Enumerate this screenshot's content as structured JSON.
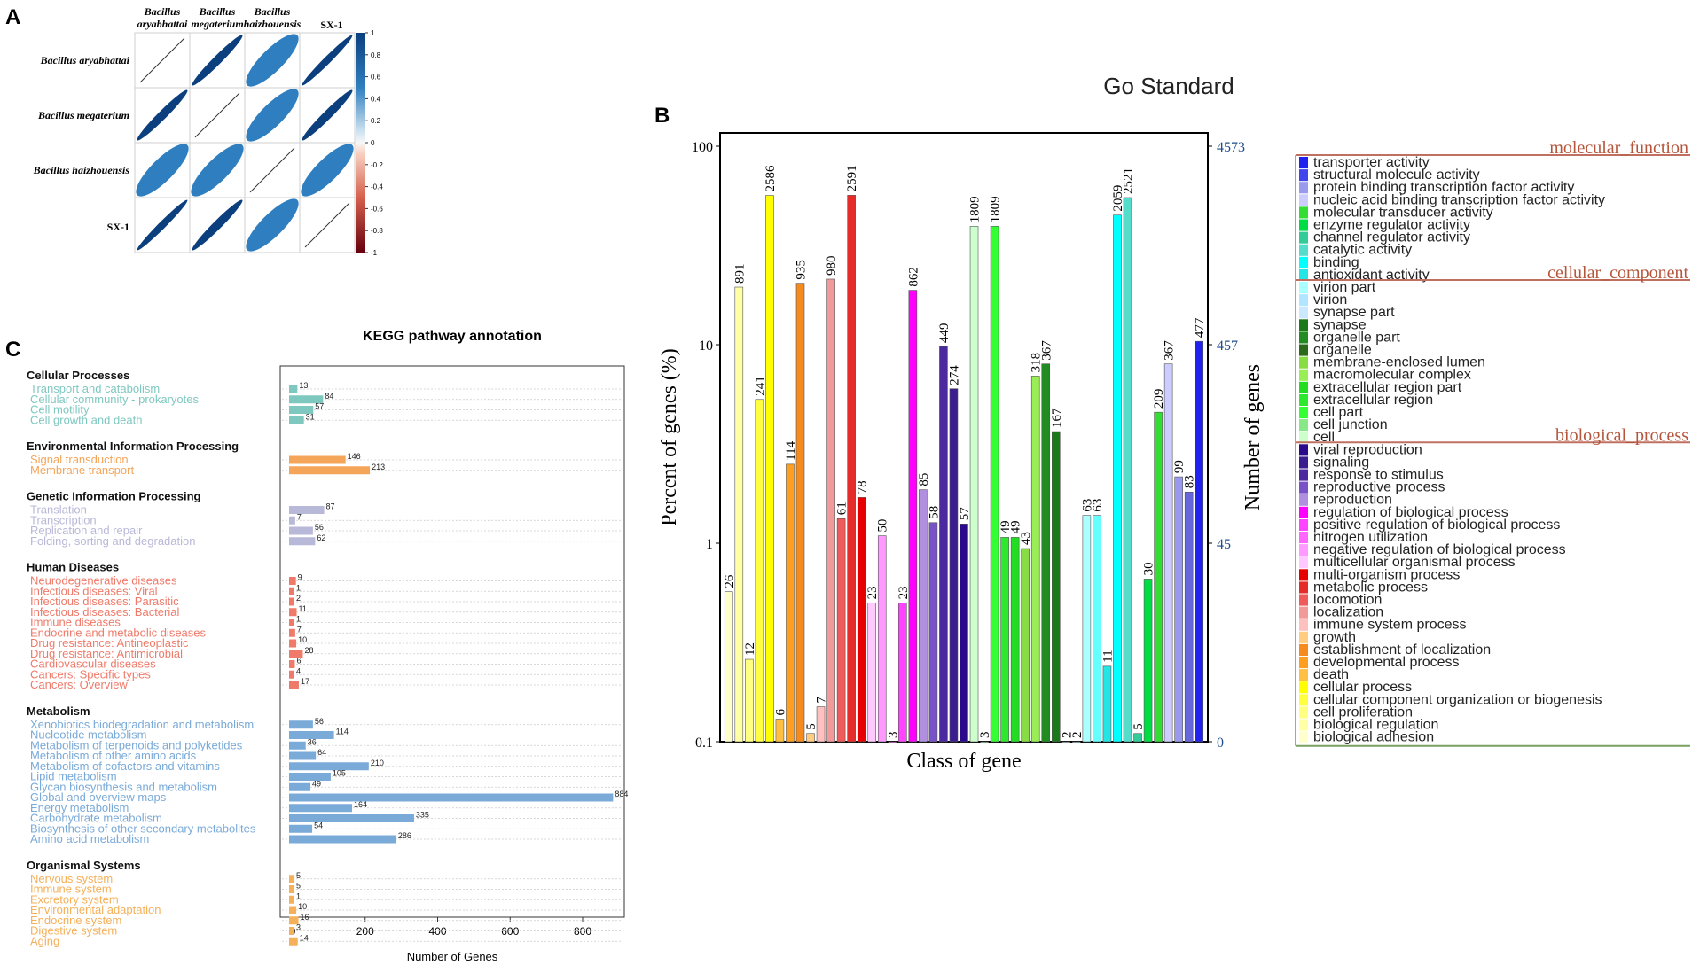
{
  "panels": {
    "a": {
      "letter": "A"
    },
    "b": {
      "letter": "B"
    },
    "c": {
      "letter": "C"
    }
  },
  "chart_data": [
    {
      "type": "heatmap",
      "id": "A",
      "title": "",
      "rows": [
        "Bacillus aryabhattai",
        "Bacillus megaterium",
        "Bacillus haizhouensis",
        "SX-1"
      ],
      "columns": [
        [
          "Bacillus",
          "aryabhattai"
        ],
        [
          "Bacillus",
          "megaterium"
        ],
        [
          "Bacillus",
          "haizhouensis"
        ],
        [
          "SX-1"
        ]
      ],
      "values": [
        [
          1,
          0.97,
          0.8,
          0.98
        ],
        [
          0.97,
          1,
          0.8,
          0.97
        ],
        [
          0.8,
          0.8,
          1,
          0.8
        ],
        [
          0.98,
          0.97,
          0.8,
          1
        ]
      ],
      "colorbar_ticks": [
        "1",
        "0.8",
        "0.6",
        "0.4",
        "0.2",
        "0",
        "-0.2",
        "-0.4",
        "-0.6",
        "-0.8",
        "-1"
      ],
      "colors": {
        "high": "#0b3f7e",
        "mid": "#2f7fc0",
        "zero": "#f7f7f7",
        "low": "#7f0010"
      }
    },
    {
      "type": "bar",
      "id": "B",
      "title": "Go Standard",
      "xlabel": "Class of gene",
      "ylabel": "Percent of genes (%)",
      "ylabel_right": "Number of genes",
      "yscale": "log",
      "ylim": [
        0.1,
        100
      ],
      "yticks": [
        "100",
        "10",
        "1",
        "0.1"
      ],
      "yticks_right": [
        "4573",
        "457",
        "45",
        "0"
      ],
      "categories": [
        "transporter activity",
        "structural molecule activity",
        "protein binding transcription factor activity",
        "nucleic acid binding transcription factor activity",
        "molecular transducer activity",
        "enzyme regulator activity",
        "channel regulator activity",
        "catalytic activity",
        "binding",
        "antioxidant activity",
        "virion part",
        "virion",
        "synapse part",
        "synapse",
        "organelle part",
        "organelle",
        "membrane-enclosed lumen",
        "macromolecular complex",
        "extracellular region part",
        "extracellular region",
        "cell part",
        "cell junction",
        "cell",
        "viral reproduction",
        "signaling",
        "response to stimulus",
        "reproductive process",
        "reproduction",
        "regulation of biological process",
        "positive regulation of biological process",
        "nitrogen utilization",
        "negative regulation of biological process",
        "multicellular organismal process",
        "multi-organism process",
        "metabolic process",
        "locomotion",
        "localization",
        "immune system process",
        "growth",
        "establishment of localization",
        "developmental process",
        "death",
        "cellular process",
        "cellular component organization or biogenesis",
        "cell proliferation",
        "biological regulation",
        "biological adhesion"
      ],
      "bars": [
        {
          "label": "26",
          "value": 0.57,
          "color": "#ffffcc"
        },
        {
          "label": "891",
          "value": 19.5,
          "color": "#ffffa6"
        },
        {
          "label": "12",
          "value": 0.26,
          "color": "#ffff80"
        },
        {
          "label": "241",
          "value": 5.3,
          "color": "#ffff40"
        },
        {
          "label": "2586",
          "value": 56.5,
          "color": "#ffff00"
        },
        {
          "label": "6",
          "value": 0.13,
          "color": "#ffbf40"
        },
        {
          "label": "114",
          "value": 2.5,
          "color": "#ff9f20"
        },
        {
          "label": "935",
          "value": 20.4,
          "color": "#f58a1f"
        },
        {
          "label": "5",
          "value": 0.11,
          "color": "#ffcc80"
        },
        {
          "label": "7",
          "value": 0.15,
          "color": "#ffc0c0"
        },
        {
          "label": "980",
          "value": 21.4,
          "color": "#f29a9a"
        },
        {
          "label": "61",
          "value": 1.33,
          "color": "#ef5a5a"
        },
        {
          "label": "2591",
          "value": 56.6,
          "color": "#e62b2b"
        },
        {
          "label": "78",
          "value": 1.7,
          "color": "#e60000"
        },
        {
          "label": "23",
          "value": 0.5,
          "color": "#ffc8ff"
        },
        {
          "label": "50",
          "value": 1.09,
          "color": "#ff99ff"
        },
        {
          "label": "3",
          "value": 0.1,
          "color": "#ff66ff"
        },
        {
          "label": "23",
          "value": 0.5,
          "color": "#ff44ff"
        },
        {
          "label": "862",
          "value": 18.8,
          "color": "#ff00ff"
        },
        {
          "label": "85",
          "value": 1.86,
          "color": "#b08ee0"
        },
        {
          "label": "58",
          "value": 1.27,
          "color": "#7a52c7"
        },
        {
          "label": "449",
          "value": 9.8,
          "color": "#4b2a9f"
        },
        {
          "label": "274",
          "value": 6.0,
          "color": "#3a1e8f"
        },
        {
          "label": "57",
          "value": 1.25,
          "color": "#2a0a8a"
        },
        {
          "label": "1809",
          "value": 39.5,
          "color": "#ccffcc"
        },
        {
          "label": "3",
          "value": 0.1,
          "color": "#b3ffb3"
        },
        {
          "label": "1809",
          "value": 39.5,
          "color": "#33ff33"
        },
        {
          "label": "49",
          "value": 1.07,
          "color": "#2ee82e"
        },
        {
          "label": "49",
          "value": 1.07,
          "color": "#22dd22"
        },
        {
          "label": "43",
          "value": 0.94,
          "color": "#88dd44"
        },
        {
          "label": "318",
          "value": 6.95,
          "color": "#99ee55"
        },
        {
          "label": "367",
          "value": 8.0,
          "color": "#228b22"
        },
        {
          "label": "167",
          "value": 3.65,
          "color": "#1a7a1a"
        },
        {
          "label": "2",
          "value": 0.1,
          "color": "#cce8ff"
        },
        {
          "label": "2",
          "value": 0.1,
          "color": "#b0e6ff"
        },
        {
          "label": "63",
          "value": 1.38,
          "color": "#aaffff"
        },
        {
          "label": "63",
          "value": 1.38,
          "color": "#66ffff"
        },
        {
          "label": "11",
          "value": 0.24,
          "color": "#22e5e5"
        },
        {
          "label": "2059",
          "value": 45.0,
          "color": "#00ffff"
        },
        {
          "label": "2521",
          "value": 55.1,
          "color": "#55ddcc"
        },
        {
          "label": "5",
          "value": 0.11,
          "color": "#33cc99"
        },
        {
          "label": "30",
          "value": 0.66,
          "color": "#00dd44"
        },
        {
          "label": "209",
          "value": 4.57,
          "color": "#33dd33"
        },
        {
          "label": "367",
          "value": 8.0,
          "color": "#ccccff"
        },
        {
          "label": "99",
          "value": 2.16,
          "color": "#9999ee"
        },
        {
          "label": "83",
          "value": 1.81,
          "color": "#6666dd"
        },
        {
          "label": "477",
          "value": 10.4,
          "color": "#2222ee"
        }
      ],
      "legend_groups": [
        {
          "name": "molecular_function",
          "items": [
            "transporter activity",
            "structural molecule activity",
            "protein binding transcription factor activity",
            "nucleic acid binding transcription factor activity",
            "molecular transducer activity",
            "enzyme regulator activity",
            "channel regulator activity",
            "catalytic activity",
            "binding",
            "antioxidant activity"
          ]
        },
        {
          "name": "cellular_component",
          "items": [
            "virion part",
            "virion",
            "synapse part",
            "synapse",
            "organelle part",
            "organelle",
            "membrane-enclosed lumen",
            "macromolecular complex",
            "extracellular region part",
            "extracellular region",
            "cell part",
            "cell junction",
            "cell"
          ]
        },
        {
          "name": "biological_process",
          "items": [
            "viral reproduction",
            "signaling",
            "response to stimulus",
            "reproductive process",
            "reproduction",
            "regulation of biological process",
            "positive regulation of biological process",
            "nitrogen utilization",
            "negative regulation of biological process",
            "multicellular organismal process",
            "multi-organism process",
            "metabolic process",
            "locomotion",
            "localization",
            "immune system process",
            "growth",
            "establishment of localization",
            "developmental process",
            "death",
            "cellular process",
            "cellular component organization or biogenesis",
            "cell proliferation",
            "biological regulation",
            "biological adhesion"
          ]
        }
      ],
      "legend_colors": [
        "#2222ee",
        "#4444ee",
        "#9999ee",
        "#ccccff",
        "#33dd33",
        "#00dd44",
        "#33cc99",
        "#55ddcc",
        "#00ffff",
        "#22e5e5",
        "#aaffff",
        "#b0e6ff",
        "#cce8ff",
        "#1a7a1a",
        "#228b22",
        "#2a6a1a",
        "#88dd44",
        "#99ee55",
        "#22dd22",
        "#2ee82e",
        "#33ff33",
        "#88e888",
        "#ccffcc",
        "#2a0a8a",
        "#3a1e8f",
        "#4b2a9f",
        "#7a52c7",
        "#b08ee0",
        "#ff00ff",
        "#ff44ff",
        "#ff66ff",
        "#ff99ff",
        "#ffc8ff",
        "#e60000",
        "#e62b2b",
        "#ef5a5a",
        "#f29a9a",
        "#ffc0c0",
        "#ffcc80",
        "#f58a1f",
        "#ff9f20",
        "#ffbf40",
        "#ffff00",
        "#ffff40",
        "#ffff80",
        "#ffffa6",
        "#ffffcc"
      ]
    },
    {
      "type": "bar",
      "id": "C",
      "orientation": "horizontal",
      "title": "KEGG pathway annotation",
      "xlabel": "Number of Genes",
      "xlim": [
        0,
        900
      ],
      "xticks": [
        0,
        200,
        400,
        600,
        800
      ],
      "groups": [
        {
          "name": "Cellular Processes",
          "color": "#7ec8c0",
          "items": [
            {
              "label": "Transport and catabolism",
              "value": 13
            },
            {
              "label": "Cellular community - prokaryotes",
              "value": 84
            },
            {
              "label": "Cell motility",
              "value": 57
            },
            {
              "label": "Cell growth and death",
              "value": 31
            }
          ]
        },
        {
          "name": "Environmental Information Processing",
          "color": "#f5a55a",
          "items": [
            {
              "label": "Signal transduction",
              "value": 146
            },
            {
              "label": "Membrane transport",
              "value": 213
            }
          ]
        },
        {
          "name": "Genetic Information Processing",
          "color": "#b8b8d8",
          "items": [
            {
              "label": "Translation",
              "value": 87
            },
            {
              "label": "Transcription",
              "value": 7
            },
            {
              "label": "Replication and repair",
              "value": 56
            },
            {
              "label": "Folding, sorting and degradation",
              "value": 62
            }
          ]
        },
        {
          "name": "Human Diseases",
          "color": "#ef7a6a",
          "items": [
            {
              "label": "Neurodegenerative diseases",
              "value": 9
            },
            {
              "label": "Infectious diseases: Viral",
              "value": 1
            },
            {
              "label": "Infectious diseases: Parasitic",
              "value": 2
            },
            {
              "label": "Infectious diseases: Bacterial",
              "value": 11
            },
            {
              "label": "Immune diseases",
              "value": 1
            },
            {
              "label": "Endocrine and metabolic diseases",
              "value": 7
            },
            {
              "label": "Drug resistance: Antineoplastic",
              "value": 10
            },
            {
              "label": "Drug resistance: Antimicrobial",
              "value": 28
            },
            {
              "label": "Cardiovascular diseases",
              "value": 6
            },
            {
              "label": "Cancers: Specific types",
              "value": 4
            },
            {
              "label": "Cancers: Overview",
              "value": 17
            }
          ]
        },
        {
          "name": "Metabolism",
          "color": "#7aaad8",
          "items": [
            {
              "label": "Xenobiotics biodegradation and metabolism",
              "value": 56
            },
            {
              "label": "Nucleotide metabolism",
              "value": 114
            },
            {
              "label": "Metabolism of terpenoids and polyketides",
              "value": 36
            },
            {
              "label": "Metabolism of other amino acids",
              "value": 64
            },
            {
              "label": "Metabolism of cofactors and vitamins",
              "value": 210
            },
            {
              "label": "Lipid metabolism",
              "value": 105
            },
            {
              "label": "Glycan biosynthesis and metabolism",
              "value": 49
            },
            {
              "label": "Global and overview maps",
              "value": 884
            },
            {
              "label": "Energy metabolism",
              "value": 164
            },
            {
              "label": "Carbohydrate metabolism",
              "value": 335
            },
            {
              "label": "Biosynthesis of other secondary metabolites",
              "value": 54
            },
            {
              "label": "Amino acid metabolism",
              "value": 286
            }
          ]
        },
        {
          "name": "Organismal Systems",
          "color": "#f5b05a",
          "items": [
            {
              "label": "Nervous system",
              "value": 5
            },
            {
              "label": "Immune system",
              "value": 5
            },
            {
              "label": "Excretory system",
              "value": 1
            },
            {
              "label": "Environmental adaptation",
              "value": 10
            },
            {
              "label": "Endocrine system",
              "value": 16
            },
            {
              "label": "Digestive system",
              "value": 3
            },
            {
              "label": "Aging",
              "value": 14
            }
          ]
        }
      ]
    }
  ]
}
